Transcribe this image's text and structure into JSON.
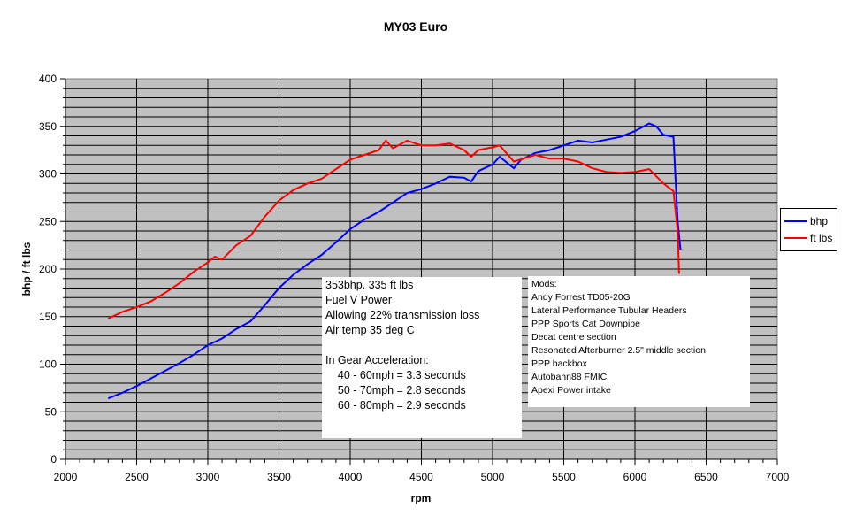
{
  "chart_data": {
    "type": "line",
    "title": "MY03 Euro",
    "xlabel": "rpm",
    "ylabel": "bhp / ft lbs",
    "xlim": [
      2000,
      7000
    ],
    "ylim": [
      0,
      400
    ],
    "xticks": [
      2000,
      2500,
      3000,
      3500,
      4000,
      4500,
      5000,
      5500,
      6000,
      6500,
      7000
    ],
    "yticks": [
      0,
      50,
      100,
      150,
      200,
      250,
      300,
      350,
      400
    ],
    "grid": true,
    "legend_position": "right",
    "series": [
      {
        "name": "bhp",
        "color": "#0000ff",
        "x": [
          2300,
          2400,
          2500,
          2600,
          2700,
          2800,
          2900,
          3000,
          3100,
          3200,
          3300,
          3400,
          3500,
          3600,
          3700,
          3800,
          3900,
          4000,
          4100,
          4200,
          4300,
          4400,
          4500,
          4600,
          4700,
          4800,
          4850,
          4900,
          5000,
          5050,
          5150,
          5200,
          5300,
          5400,
          5500,
          5600,
          5700,
          5800,
          5900,
          6000,
          6100,
          6150,
          6200,
          6270,
          6300,
          6320
        ],
        "y": [
          64,
          70,
          77,
          85,
          93,
          101,
          110,
          120,
          127,
          137,
          145,
          162,
          180,
          194,
          205,
          215,
          228,
          242,
          252,
          260,
          270,
          280,
          284,
          290,
          297,
          296,
          292,
          303,
          310,
          318,
          306,
          315,
          322,
          325,
          330,
          335,
          333,
          336,
          339,
          345,
          353,
          350,
          341,
          339,
          250,
          220
        ]
      },
      {
        "name": "ft lbs",
        "color": "#ff0000",
        "x": [
          2300,
          2400,
          2500,
          2600,
          2700,
          2800,
          2900,
          3000,
          3050,
          3100,
          3200,
          3300,
          3400,
          3500,
          3600,
          3700,
          3800,
          3900,
          4000,
          4100,
          4200,
          4250,
          4300,
          4400,
          4500,
          4600,
          4700,
          4800,
          4850,
          4900,
          5000,
          5050,
          5150,
          5300,
          5400,
          5500,
          5600,
          5700,
          5800,
          5900,
          6000,
          6100,
          6200,
          6270,
          6300,
          6310
        ],
        "y": [
          148,
          155,
          160,
          166,
          175,
          185,
          197,
          207,
          213,
          210,
          225,
          235,
          255,
          272,
          283,
          290,
          295,
          305,
          315,
          320,
          325,
          335,
          327,
          335,
          330,
          330,
          332,
          325,
          318,
          325,
          328,
          330,
          313,
          320,
          316,
          316,
          313,
          306,
          302,
          301,
          302,
          305,
          290,
          282,
          240,
          195
        ]
      }
    ]
  },
  "notes": {
    "box1": [
      "353bhp. 335 ft lbs",
      "Fuel V Power",
      "Allowing 22% transmission loss",
      "Air temp 35 deg C",
      "",
      "In Gear Acceleration:",
      "    40 - 60mph = 3.3 seconds",
      "    50 - 70mph = 2.8 seconds",
      "    60 - 80mph = 2.9 seconds"
    ],
    "box2": [
      "Mods:",
      "Andy Forrest TD05-20G",
      "Lateral Performance Tubular Headers",
      "PPP Sports Cat Downpipe",
      "Decat centre section",
      "Resonated Afterburner 2.5\" middle section",
      "PPP backbox",
      "Autobahn88 FMIC",
      "Apexi Power intake"
    ]
  }
}
